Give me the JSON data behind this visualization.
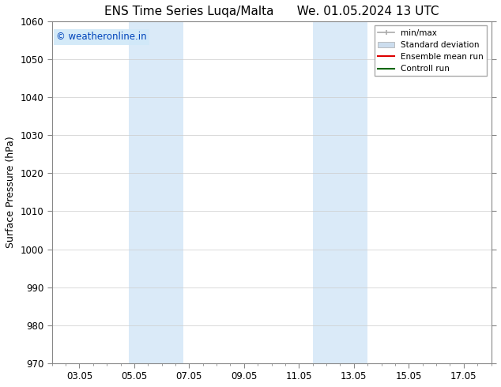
{
  "title_left": "ENS Time Series Luqa/Malta",
  "title_right": "We. 01.05.2024 13 UTC",
  "ylabel": "Surface Pressure (hPa)",
  "ylim": [
    970,
    1060
  ],
  "yticks": [
    970,
    980,
    990,
    1000,
    1010,
    1020,
    1030,
    1040,
    1050,
    1060
  ],
  "xtick_labels": [
    "03.05",
    "05.05",
    "07.05",
    "09.05",
    "11.05",
    "13.05",
    "15.05",
    "17.05"
  ],
  "xtick_positions": [
    2,
    4,
    6,
    8,
    10,
    12,
    14,
    16
  ],
  "xlim": [
    1,
    17
  ],
  "shaded_regions": [
    {
      "x_start": 3.8,
      "x_end": 5.8,
      "color": "#daeaf8"
    },
    {
      "x_start": 10.5,
      "x_end": 12.5,
      "color": "#daeaf8"
    }
  ],
  "watermark_text": "© weatheronline.in",
  "watermark_color": "#0044bb",
  "watermark_bg": "#d0e8f8",
  "legend_entries": [
    {
      "label": "min/max",
      "type": "errorbar",
      "color": "#aaaaaa"
    },
    {
      "label": "Standard deviation",
      "type": "patch",
      "color": "#ccddee"
    },
    {
      "label": "Ensemble mean run",
      "type": "line",
      "color": "#dd0000"
    },
    {
      "label": "Controll run",
      "type": "line",
      "color": "#006600"
    }
  ],
  "bg_color": "#ffffff",
  "grid_color": "#cccccc",
  "title_fontsize": 11,
  "axis_label_fontsize": 9,
  "tick_fontsize": 8.5
}
